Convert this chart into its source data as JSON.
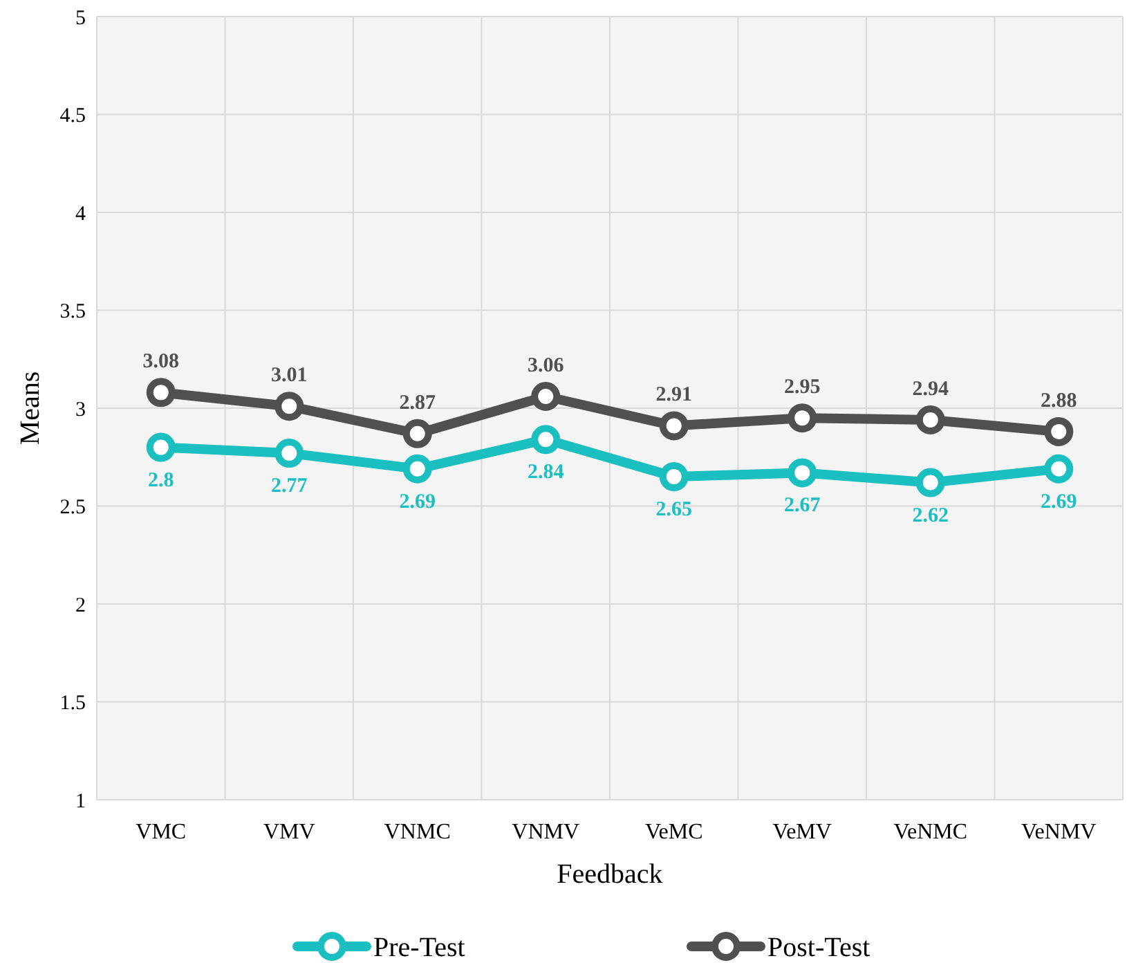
{
  "chart_data": {
    "type": "line",
    "xlabel": "Feedback",
    "ylabel": "Means",
    "categories": [
      "VMC",
      "VMV",
      "VNMC",
      "VNMV",
      "VeMC",
      "VeMV",
      "VeNMC",
      "VeNMV"
    ],
    "series": [
      {
        "name": "Pre-Test",
        "color": "#1bbfbf",
        "values": [
          2.8,
          2.77,
          2.69,
          2.84,
          2.65,
          2.67,
          2.62,
          2.69
        ]
      },
      {
        "name": "Post-Test",
        "color": "#505050",
        "values": [
          3.08,
          3.01,
          2.87,
          3.06,
          2.91,
          2.95,
          2.94,
          2.88
        ]
      }
    ],
    "ylim": [
      1,
      5
    ],
    "yticks": [
      1,
      1.5,
      2,
      2.5,
      3,
      3.5,
      4,
      4.5,
      5
    ],
    "grid": true,
    "legend": "bottom",
    "marker": "circle",
    "line_style": "solid",
    "data_labels": true
  }
}
